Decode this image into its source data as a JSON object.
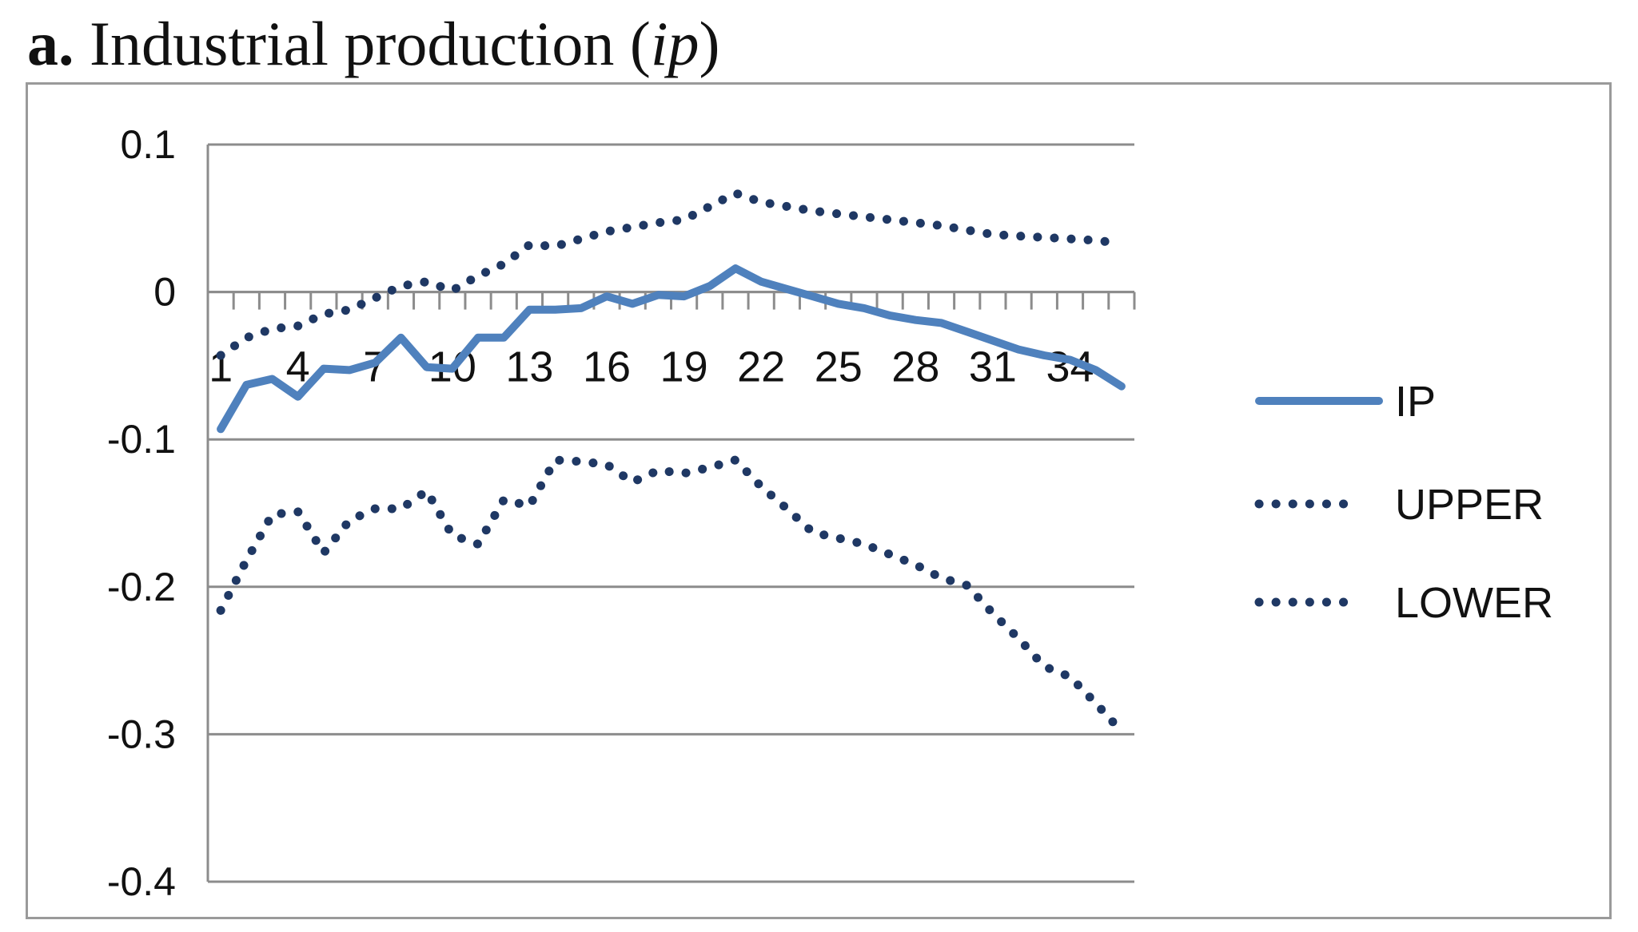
{
  "caption": {
    "lead": "a.",
    "text": "Industrial production (",
    "variable": "ip",
    "close": ")"
  },
  "chart_data": {
    "type": "line",
    "title": "",
    "xlabel": "",
    "ylabel": "",
    "x": [
      1,
      2,
      3,
      4,
      5,
      6,
      7,
      8,
      9,
      10,
      11,
      12,
      13,
      14,
      15,
      16,
      17,
      18,
      19,
      20,
      21,
      22,
      23,
      24,
      25,
      26,
      27,
      28,
      29,
      30,
      31,
      32,
      33,
      34,
      35,
      36
    ],
    "x_tick_labels": [
      "1",
      "4",
      "7",
      "10",
      "13",
      "16",
      "19",
      "22",
      "25",
      "28",
      "31",
      "34"
    ],
    "y_tick_labels": [
      "0.1",
      "0",
      "-0.1",
      "-0.2",
      "-0.3",
      "-0.4"
    ],
    "ylim": [
      -0.4,
      0.1
    ],
    "grid": "horizontal",
    "legend_position": "right",
    "series": [
      {
        "name": "IP",
        "style": "solid",
        "color": "#4f81bd",
        "values": [
          -0.093,
          -0.063,
          -0.059,
          -0.071,
          -0.052,
          -0.053,
          -0.048,
          -0.031,
          -0.051,
          -0.052,
          -0.031,
          -0.031,
          -0.012,
          -0.012,
          -0.011,
          -0.003,
          -0.008,
          -0.002,
          -0.003,
          0.004,
          0.016,
          0.007,
          0.002,
          -0.003,
          -0.008,
          -0.011,
          -0.016,
          -0.019,
          -0.021,
          -0.027,
          -0.033,
          -0.039,
          -0.043,
          -0.046,
          -0.053,
          -0.064
        ]
      },
      {
        "name": "UPPER",
        "style": "dotted",
        "color": "#1f3864",
        "values": [
          -0.043,
          -0.031,
          -0.025,
          -0.023,
          -0.015,
          -0.012,
          -0.004,
          0.004,
          0.007,
          0.001,
          0.011,
          0.019,
          0.032,
          0.031,
          0.036,
          0.041,
          0.044,
          0.047,
          0.049,
          0.058,
          0.067,
          0.061,
          0.058,
          0.055,
          0.053,
          0.051,
          0.049,
          0.047,
          0.045,
          0.042,
          0.039,
          0.038,
          0.037,
          0.036,
          0.035,
          0.033
        ]
      },
      {
        "name": "LOWER",
        "style": "dotted",
        "color": "#1f3864",
        "values": [
          -0.216,
          -0.182,
          -0.151,
          -0.149,
          -0.177,
          -0.155,
          -0.147,
          -0.147,
          -0.135,
          -0.165,
          -0.171,
          -0.141,
          -0.145,
          -0.114,
          -0.115,
          -0.117,
          -0.129,
          -0.121,
          -0.123,
          -0.119,
          -0.114,
          -0.132,
          -0.147,
          -0.163,
          -0.167,
          -0.171,
          -0.178,
          -0.185,
          -0.194,
          -0.199,
          -0.218,
          -0.235,
          -0.254,
          -0.261,
          -0.279,
          -0.298
        ]
      }
    ]
  }
}
